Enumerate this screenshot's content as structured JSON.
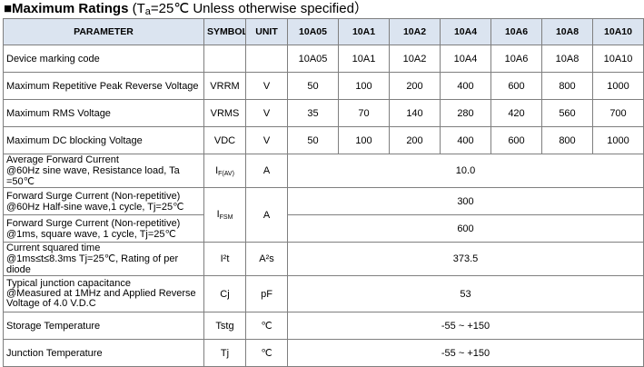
{
  "title": {
    "bold": "■Maximum Ratings",
    "prefix": " (T",
    "sub": "a",
    "suffix": "=25℃ Unless otherwise specified）"
  },
  "headers": [
    "PARAMETER",
    "SYMBOL",
    "UNIT",
    "10A05",
    "10A1",
    "10A2",
    "10A4",
    "10A6",
    "10A8",
    "10A10"
  ],
  "rows": [
    {
      "param": "Device marking code",
      "symbol": "",
      "unit": "",
      "values": [
        "10A05",
        "10A1",
        "10A2",
        "10A4",
        "10A6",
        "10A8",
        "10A10"
      ]
    },
    {
      "param": "Maximum  Repetitive Peak Reverse Voltage",
      "symbol": "VRRM",
      "unit": "V",
      "values": [
        "50",
        "100",
        "200",
        "400",
        "600",
        "800",
        "1000"
      ]
    },
    {
      "param": "Maximum RMS Voltage",
      "symbol": "VRMS",
      "unit": "V",
      "values": [
        "35",
        "70",
        "140",
        "280",
        "420",
        "560",
        "700"
      ]
    },
    {
      "param": "Maximum DC blocking Voltage",
      "symbol": "VDC",
      "unit": "V",
      "values": [
        "50",
        "100",
        "200",
        "400",
        "600",
        "800",
        "1000"
      ]
    }
  ],
  "avg_forward": {
    "line1": "Average Forward Current",
    "line2": "@60Hz sine wave, Resistance load, Ta =50℃",
    "symbol": "I",
    "symbol_sub": "F(AV)",
    "unit": "A",
    "value": "10.0"
  },
  "surge": {
    "a_line1": "Forward Surge Current (Non-repetitive)",
    "a_line2": "@60Hz Half-sine wave,1 cycle, Tj=25℃",
    "a_value": "300",
    "b_line1": "Forward Surge Current (Non-repetitive)",
    "b_line2": "@1ms, square wave, 1 cycle, Tj=25℃",
    "b_value": "600",
    "symbol": "I",
    "symbol_sub": "FSM",
    "unit": "A"
  },
  "i2t": {
    "line1": "Current squared time",
    "line2": "@1ms≤t≤8.3ms Tj=25℃,  Rating of per diode",
    "symbol": "I²t",
    "unit": "A²s",
    "value": "373.5"
  },
  "cj": {
    "line1": "Typical junction capacitance",
    "line2": "@Measured at 1MHz and Applied Reverse",
    "line3": "Voltage of 4.0 V.D.C",
    "symbol": "Cj",
    "unit": "pF",
    "value": "53"
  },
  "tstg": {
    "param": "Storage Temperature",
    "symbol": "Tstg",
    "unit": "℃",
    "value": "-55 ~ +150"
  },
  "tj": {
    "param": "Junction Temperature",
    "symbol": "Tj",
    "unit": "℃",
    "value": "-55 ~ +150"
  }
}
